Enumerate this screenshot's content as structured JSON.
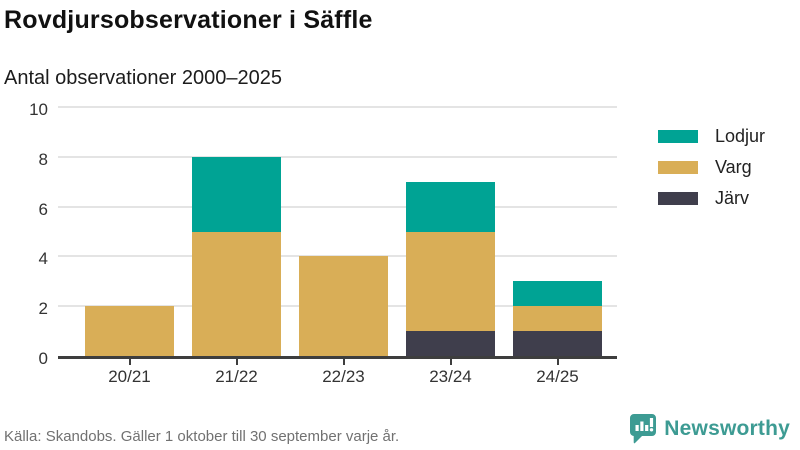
{
  "header": {
    "title": "Rovdjursobservationer i Säffle",
    "subtitle": "Antal observationer 2000–2025"
  },
  "chart_data": {
    "type": "bar",
    "stacked": true,
    "categories": [
      "20/21",
      "21/22",
      "22/23",
      "23/24",
      "24/25"
    ],
    "series": [
      {
        "name": "Lodjur",
        "color": "#00a394",
        "values": [
          0,
          3,
          0,
          2,
          1
        ]
      },
      {
        "name": "Varg",
        "color": "#d9ae57",
        "values": [
          2,
          5,
          4,
          4,
          1
        ]
      },
      {
        "name": "Järv",
        "color": "#3f3e4c",
        "values": [
          0,
          0,
          0,
          1,
          1
        ]
      }
    ],
    "totals": [
      2,
      8,
      4,
      7,
      3
    ],
    "title": "Rovdjursobservationer i Säffle",
    "xlabel": "",
    "ylabel": "",
    "ylim": [
      0,
      10
    ],
    "yticks": [
      0,
      2,
      4,
      6,
      8,
      10
    ],
    "grid": true,
    "legend_position": "right"
  },
  "colors": {
    "axis": "#3e3e3e",
    "gridline": "#e4e4e4",
    "brand_teal": "#3d9b93"
  },
  "footer": {
    "source": "Källa: Skandobs. Gäller 1 oktober till 30 september varje år.",
    "brand": "Newsworthy"
  }
}
